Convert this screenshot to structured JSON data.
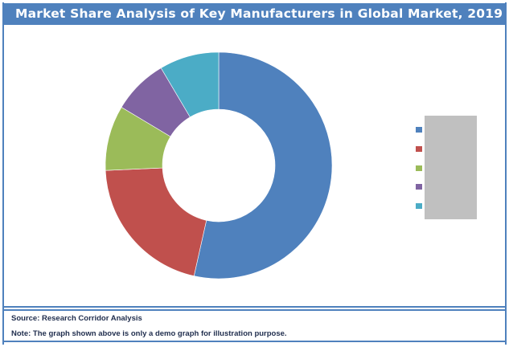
{
  "title": "Market Share Analysis of Key Manufacturers in Global Market, 2019",
  "footer": {
    "source": "Source: Research Corridor Analysis",
    "note": "Note: The graph shown above is only a demo graph for illustration purpose."
  },
  "colors": {
    "frame": "#4f81bd",
    "title_bg": "#4f81bd",
    "legend_mask": "#c0c0c0"
  },
  "chart_data": {
    "type": "pie",
    "subtype": "donut",
    "title": "Market Share Analysis of Key Manufacturers in Global Market, 2019",
    "categories": [
      "",
      "",
      "",
      "",
      ""
    ],
    "values": [
      53.5,
      20.8,
      9.3,
      7.9,
      8.5
    ],
    "colors": [
      "#4f81bd",
      "#c0504d",
      "#9bbb59",
      "#8064a2",
      "#4bacc6"
    ],
    "start_angle_deg": 0,
    "direction": "clockwise",
    "legend_position": "right",
    "legend_labels_hidden": true,
    "unit": "%"
  }
}
